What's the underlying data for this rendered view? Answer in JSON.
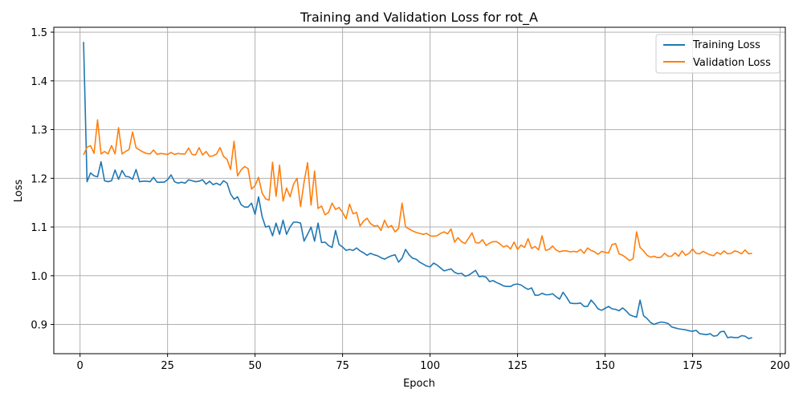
{
  "chart_data": {
    "type": "line",
    "title": "Training and Validation Loss for rot_A",
    "xlabel": "Epoch",
    "ylabel": "Loss",
    "xlim": [
      -7.5,
      201.5
    ],
    "ylim": [
      0.84,
      1.51
    ],
    "xticks": [
      0,
      25,
      50,
      75,
      100,
      125,
      150,
      175,
      200
    ],
    "yticks": [
      0.9,
      1.0,
      1.1,
      1.2,
      1.3,
      1.4,
      1.5
    ],
    "xtick_labels": [
      "0",
      "25",
      "50",
      "75",
      "100",
      "125",
      "150",
      "175",
      "200"
    ],
    "ytick_labels": [
      "0.9",
      "1.0",
      "1.1",
      "1.2",
      "1.3",
      "1.4",
      "1.5"
    ],
    "grid": true,
    "legend_position": "top-right",
    "series": [
      {
        "name": "Training Loss",
        "color": "#1f77b4",
        "x": [
          1,
          2,
          3,
          4,
          5,
          6,
          7,
          8,
          9,
          10,
          11,
          12,
          13,
          14,
          15,
          16,
          17,
          18,
          19,
          20,
          21,
          22,
          23,
          24,
          25,
          26,
          27,
          28,
          29,
          30,
          31,
          32,
          33,
          34,
          35,
          36,
          37,
          38,
          39,
          40,
          41,
          42,
          43,
          44,
          45,
          46,
          47,
          48,
          49,
          50,
          51,
          52,
          53,
          54,
          55,
          56,
          57,
          58,
          59,
          60,
          61,
          62,
          63,
          64,
          65,
          66,
          67,
          68,
          69,
          70,
          71,
          72,
          73,
          74,
          75,
          76,
          77,
          78,
          79,
          80,
          81,
          82,
          83,
          84,
          85,
          86,
          87,
          88,
          89,
          90,
          91,
          92,
          93,
          94,
          95,
          96,
          97,
          98,
          99,
          100,
          101,
          102,
          103,
          104,
          105,
          106,
          107,
          108,
          109,
          110,
          111,
          112,
          113,
          114,
          115,
          116,
          117,
          118,
          119,
          120,
          121,
          122,
          123,
          124,
          125,
          126,
          127,
          128,
          129,
          130,
          131,
          132,
          133,
          134,
          135,
          136,
          137,
          138,
          139,
          140,
          141,
          142,
          143,
          144,
          145,
          146,
          147,
          148,
          149,
          150,
          151,
          152,
          153,
          154,
          155,
          156,
          157,
          158,
          159,
          160,
          161,
          162,
          163,
          164,
          165,
          166,
          167,
          168,
          169,
          170,
          171,
          172,
          173,
          174,
          175,
          176,
          177,
          178,
          179,
          180,
          181,
          182,
          183,
          184,
          185,
          186,
          187,
          188,
          189,
          190,
          191,
          192
        ],
        "values": [
          1.48,
          1.193,
          1.211,
          1.205,
          1.203,
          1.234,
          1.195,
          1.193,
          1.195,
          1.217,
          1.198,
          1.216,
          1.204,
          1.203,
          1.198,
          1.218,
          1.193,
          1.194,
          1.194,
          1.193,
          1.202,
          1.192,
          1.192,
          1.192,
          1.197,
          1.207,
          1.193,
          1.19,
          1.192,
          1.19,
          1.197,
          1.195,
          1.193,
          1.194,
          1.197,
          1.188,
          1.194,
          1.187,
          1.19,
          1.186,
          1.195,
          1.19,
          1.168,
          1.157,
          1.162,
          1.146,
          1.141,
          1.141,
          1.149,
          1.126,
          1.162,
          1.122,
          1.1,
          1.102,
          1.082,
          1.108,
          1.085,
          1.114,
          1.085,
          1.1,
          1.11,
          1.11,
          1.108,
          1.071,
          1.085,
          1.1,
          1.071,
          1.108,
          1.068,
          1.069,
          1.062,
          1.058,
          1.093,
          1.064,
          1.059,
          1.052,
          1.054,
          1.052,
          1.057,
          1.051,
          1.047,
          1.042,
          1.046,
          1.043,
          1.041,
          1.037,
          1.034,
          1.038,
          1.041,
          1.043,
          1.028,
          1.036,
          1.054,
          1.043,
          1.036,
          1.034,
          1.028,
          1.024,
          1.02,
          1.018,
          1.026,
          1.022,
          1.016,
          1.01,
          1.012,
          1.014,
          1.007,
          1.004,
          1.005,
          0.999,
          1.001,
          1.006,
          1.011,
          0.998,
          0.999,
          0.997,
          0.988,
          0.99,
          0.986,
          0.983,
          0.979,
          0.978,
          0.978,
          0.982,
          0.983,
          0.981,
          0.976,
          0.972,
          0.975,
          0.96,
          0.96,
          0.964,
          0.961,
          0.961,
          0.963,
          0.957,
          0.952,
          0.966,
          0.956,
          0.944,
          0.943,
          0.943,
          0.944,
          0.937,
          0.937,
          0.95,
          0.942,
          0.932,
          0.929,
          0.933,
          0.937,
          0.932,
          0.931,
          0.928,
          0.934,
          0.928,
          0.92,
          0.917,
          0.915,
          0.95,
          0.918,
          0.912,
          0.904,
          0.9,
          0.903,
          0.905,
          0.904,
          0.902,
          0.895,
          0.893,
          0.891,
          0.89,
          0.889,
          0.887,
          0.886,
          0.888,
          0.881,
          0.88,
          0.879,
          0.881,
          0.876,
          0.877,
          0.885,
          0.886,
          0.873,
          0.874,
          0.873,
          0.873,
          0.877,
          0.876,
          0.871,
          0.873
        ]
      },
      {
        "name": "Validation Loss",
        "color": "#ff7f0e",
        "x": [
          1,
          2,
          3,
          4,
          5,
          6,
          7,
          8,
          9,
          10,
          11,
          12,
          13,
          14,
          15,
          16,
          17,
          18,
          19,
          20,
          21,
          22,
          23,
          24,
          25,
          26,
          27,
          28,
          29,
          30,
          31,
          32,
          33,
          34,
          35,
          36,
          37,
          38,
          39,
          40,
          41,
          42,
          43,
          44,
          45,
          46,
          47,
          48,
          49,
          50,
          51,
          52,
          53,
          54,
          55,
          56,
          57,
          58,
          59,
          60,
          61,
          62,
          63,
          64,
          65,
          66,
          67,
          68,
          69,
          70,
          71,
          72,
          73,
          74,
          75,
          76,
          77,
          78,
          79,
          80,
          81,
          82,
          83,
          84,
          85,
          86,
          87,
          88,
          89,
          90,
          91,
          92,
          93,
          94,
          95,
          96,
          97,
          98,
          99,
          100,
          101,
          102,
          103,
          104,
          105,
          106,
          107,
          108,
          109,
          110,
          111,
          112,
          113,
          114,
          115,
          116,
          117,
          118,
          119,
          120,
          121,
          122,
          123,
          124,
          125,
          126,
          127,
          128,
          129,
          130,
          131,
          132,
          133,
          134,
          135,
          136,
          137,
          138,
          139,
          140,
          141,
          142,
          143,
          144,
          145,
          146,
          147,
          148,
          149,
          150,
          151,
          152,
          153,
          154,
          155,
          156,
          157,
          158,
          159,
          160,
          161,
          162,
          163,
          164,
          165,
          166,
          167,
          168,
          169,
          170,
          171,
          172,
          173,
          174,
          175,
          176,
          177,
          178,
          179,
          180,
          181,
          182,
          183,
          184,
          185,
          186,
          187,
          188,
          189,
          190,
          191,
          192
        ],
        "values": [
          1.248,
          1.264,
          1.267,
          1.251,
          1.32,
          1.25,
          1.255,
          1.25,
          1.267,
          1.25,
          1.304,
          1.25,
          1.255,
          1.259,
          1.295,
          1.263,
          1.258,
          1.254,
          1.251,
          1.25,
          1.258,
          1.249,
          1.251,
          1.25,
          1.249,
          1.253,
          1.249,
          1.251,
          1.25,
          1.25,
          1.262,
          1.249,
          1.248,
          1.263,
          1.248,
          1.255,
          1.245,
          1.246,
          1.25,
          1.263,
          1.245,
          1.239,
          1.218,
          1.276,
          1.205,
          1.217,
          1.224,
          1.22,
          1.178,
          1.185,
          1.202,
          1.17,
          1.158,
          1.155,
          1.233,
          1.163,
          1.227,
          1.153,
          1.18,
          1.162,
          1.188,
          1.2,
          1.142,
          1.192,
          1.232,
          1.145,
          1.215,
          1.138,
          1.143,
          1.125,
          1.13,
          1.149,
          1.136,
          1.14,
          1.13,
          1.117,
          1.147,
          1.127,
          1.13,
          1.102,
          1.112,
          1.118,
          1.107,
          1.102,
          1.103,
          1.093,
          1.114,
          1.099,
          1.103,
          1.09,
          1.097,
          1.149,
          1.1,
          1.096,
          1.092,
          1.089,
          1.087,
          1.085,
          1.087,
          1.082,
          1.081,
          1.082,
          1.087,
          1.09,
          1.086,
          1.096,
          1.069,
          1.078,
          1.07,
          1.066,
          1.077,
          1.088,
          1.068,
          1.067,
          1.074,
          1.062,
          1.067,
          1.07,
          1.07,
          1.065,
          1.059,
          1.062,
          1.055,
          1.069,
          1.054,
          1.063,
          1.058,
          1.076,
          1.056,
          1.06,
          1.053,
          1.082,
          1.052,
          1.054,
          1.061,
          1.053,
          1.049,
          1.051,
          1.051,
          1.049,
          1.05,
          1.049,
          1.054,
          1.046,
          1.057,
          1.052,
          1.049,
          1.044,
          1.05,
          1.048,
          1.047,
          1.064,
          1.066,
          1.045,
          1.042,
          1.037,
          1.031,
          1.035,
          1.09,
          1.058,
          1.051,
          1.042,
          1.038,
          1.04,
          1.037,
          1.038,
          1.046,
          1.04,
          1.04,
          1.047,
          1.04,
          1.051,
          1.042,
          1.046,
          1.055,
          1.046,
          1.045,
          1.05,
          1.046,
          1.043,
          1.041,
          1.048,
          1.044,
          1.051,
          1.045,
          1.046,
          1.051,
          1.049,
          1.045,
          1.053,
          1.045,
          1.046
        ]
      }
    ]
  }
}
